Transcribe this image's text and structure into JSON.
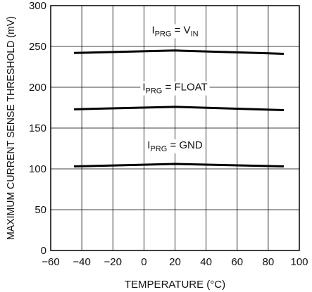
{
  "chart_data": {
    "type": "line",
    "title": "",
    "xlabel": "TEMPERATURE (°C)",
    "ylabel": "MAXIMUM CURRENT SENSE THRESHOLD (mV)",
    "xlim": [
      -60,
      100
    ],
    "ylim": [
      0,
      300
    ],
    "xticks": [
      -60,
      -40,
      -20,
      0,
      20,
      40,
      60,
      80,
      100
    ],
    "yticks": [
      0,
      50,
      100,
      150,
      200,
      250,
      300
    ],
    "grid": true,
    "x": [
      -45,
      20,
      90
    ],
    "series": [
      {
        "name": "I_PRG = V_IN",
        "values": [
          242,
          245,
          241
        ]
      },
      {
        "name": "I_PRG = FLOAT",
        "values": [
          173,
          176,
          172
        ]
      },
      {
        "name": "I_PRG = GND",
        "values": [
          103,
          106,
          103
        ]
      }
    ],
    "annotations": [
      {
        "main": "I",
        "sub": "PRG",
        "mid": " = V",
        "sub2": "IN",
        "x": 20,
        "y": 266
      },
      {
        "main": "I",
        "sub": "PRG",
        "mid": " = FLOAT",
        "sub2": "",
        "x": 20,
        "y": 196
      },
      {
        "main": "I",
        "sub": "PRG",
        "mid": " = GND",
        "sub2": "",
        "x": 20,
        "y": 125
      }
    ]
  }
}
